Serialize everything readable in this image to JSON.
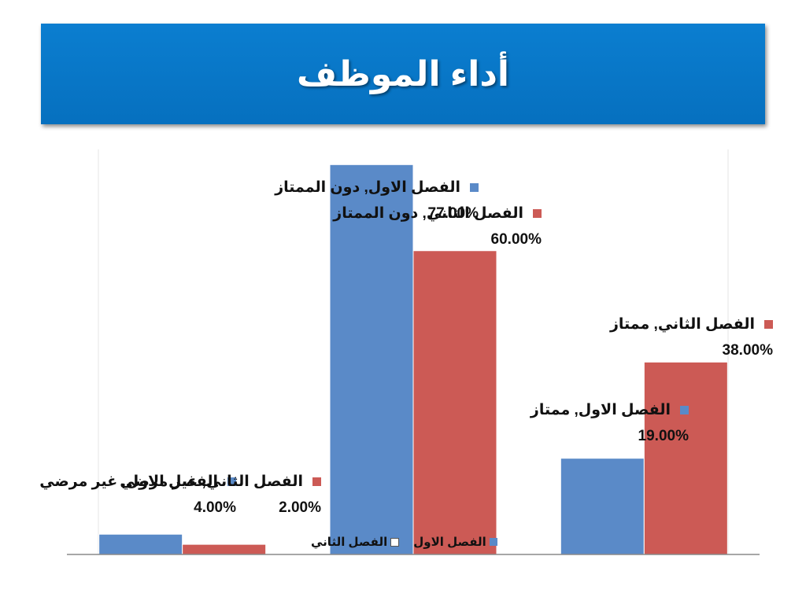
{
  "slide": {
    "title": "أداء الموظف"
  },
  "colors": {
    "series1": "#5a8ac8",
    "series2": "#cc5a55",
    "title_bg": "#0775c6"
  },
  "chart_data": {
    "type": "bar",
    "title": "",
    "xlabel": "",
    "ylabel": "",
    "ylim": [
      0,
      0.8
    ],
    "grid": false,
    "legend_position": "bottom",
    "categories": [
      "غير مرضي",
      "دون الممتاز",
      "ممتاز"
    ],
    "series": [
      {
        "name": "الفصل الاول",
        "values": [
          0.04,
          0.77,
          0.19
        ]
      },
      {
        "name": "الفصل الثاني",
        "values": [
          0.02,
          0.6,
          0.38
        ]
      }
    ],
    "data_labels": [
      [
        "الفصل الاول, غير مرضي, 4.00%",
        "الفصل الاول, دون الممتاز, 77.00%",
        "الفصل الاول, ممتاز, 19.00%"
      ],
      [
        "الفصل الثاني, غير مرضي, 2.00%",
        "الفصل الثاني, دون الممتاز, 60.00%",
        "الفصل الثاني, ممتاز, 38.00%"
      ]
    ]
  }
}
